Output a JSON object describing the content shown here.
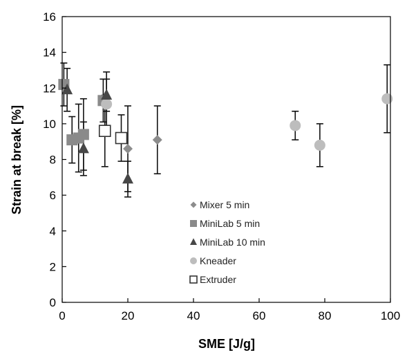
{
  "chart_data": {
    "type": "scatter",
    "xlabel": "SME [J/g]",
    "ylabel": "Strain at break [%]",
    "xlim": [
      0,
      100
    ],
    "ylim": [
      0,
      16
    ],
    "xticks": [
      "0",
      "20",
      "40",
      "60",
      "80",
      "100"
    ],
    "yticks": [
      "0",
      "2",
      "4",
      "6",
      "8",
      "10",
      "12",
      "14",
      "16"
    ],
    "grid": false,
    "legend_position": "bottom-center",
    "series": [
      {
        "name": "Mixer 5 min",
        "marker": "diamond",
        "color": "#8c8c8c",
        "points": [
          {
            "x": 20,
            "y": 8.6,
            "err": 2.4
          },
          {
            "x": 29,
            "y": 9.1,
            "err": 1.9
          }
        ]
      },
      {
        "name": "MiniLab 5 min",
        "marker": "square",
        "color": "#8a8a8a",
        "points": [
          {
            "x": 0.5,
            "y": 12.2,
            "err": 1.2
          },
          {
            "x": 3,
            "y": 9.1,
            "err": 1.3
          },
          {
            "x": 5,
            "y": 9.2,
            "err": 1.9
          },
          {
            "x": 6.5,
            "y": 9.4,
            "err": 2.0
          },
          {
            "x": 12.5,
            "y": 11.3,
            "err": 1.2
          }
        ]
      },
      {
        "name": "MiniLab 10 min",
        "marker": "triangle",
        "color": "#474747",
        "points": [
          {
            "x": 1.5,
            "y": 11.9,
            "err": 1.2
          },
          {
            "x": 6.5,
            "y": 8.6,
            "err": 1.5
          },
          {
            "x": 13.5,
            "y": 11.6,
            "err": 0.9
          },
          {
            "x": 20,
            "y": 6.9,
            "err": 1.0
          }
        ]
      },
      {
        "name": "Kneader",
        "marker": "circle",
        "color": "#bdbdbd",
        "points": [
          {
            "x": 13.5,
            "y": 11.1,
            "err": 1.8
          },
          {
            "x": 71,
            "y": 9.9,
            "err": 0.8
          },
          {
            "x": 78.5,
            "y": 8.8,
            "err": 1.2
          },
          {
            "x": 99,
            "y": 11.4,
            "err": 1.9
          }
        ]
      },
      {
        "name": "Extruder",
        "marker": "open-square",
        "color": "#333333",
        "points": [
          {
            "x": 13,
            "y": 9.6,
            "err": 2.0
          },
          {
            "x": 18,
            "y": 9.2,
            "err": 1.3
          }
        ]
      }
    ]
  }
}
